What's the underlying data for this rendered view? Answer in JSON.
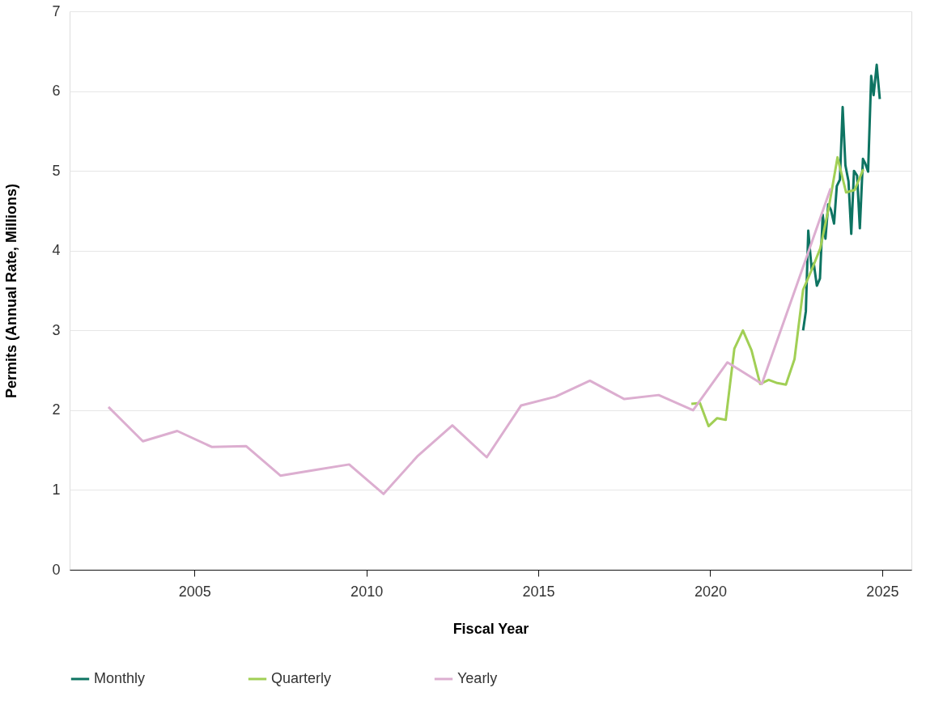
{
  "chart_data": {
    "type": "line",
    "xlabel": "Fiscal Year",
    "ylabel": "Permits (Annual Rate, Millions)",
    "xlim": [
      2001.37,
      2025.85
    ],
    "xticks": [
      2005,
      2010,
      2015,
      2020,
      2025
    ],
    "ylim": [
      0,
      7
    ],
    "yticks": [
      0,
      1,
      2,
      3,
      4,
      5,
      6,
      7
    ],
    "grid": "y",
    "legend": "bottom",
    "line_style": "solid",
    "marker": "none",
    "series": [
      {
        "name": "Monthly",
        "color": "#0e7462",
        "x": [
          2022.7,
          2022.78,
          2022.85,
          2022.95,
          2023.01,
          2023.1,
          2023.19,
          2023.27,
          2023.35,
          2023.43,
          2023.51,
          2023.6,
          2023.68,
          2023.77,
          2023.85,
          2023.93,
          2024.02,
          2024.1,
          2024.18,
          2024.27,
          2024.35,
          2024.44,
          2024.51,
          2024.59,
          2024.68,
          2024.75,
          2024.84,
          2024.93
        ],
        "values": [
          3.0,
          3.24,
          4.25,
          3.76,
          3.84,
          3.56,
          3.65,
          4.45,
          4.15,
          4.58,
          4.51,
          4.34,
          4.81,
          4.89,
          5.8,
          5.07,
          4.87,
          4.21,
          5.0,
          4.94,
          4.28,
          5.15,
          5.09,
          4.99,
          6.19,
          5.95,
          6.33,
          5.9
        ]
      },
      {
        "name": "Quarterly",
        "color": "#a1cf55",
        "x": [
          2019.45,
          2019.7,
          2019.95,
          2020.2,
          2020.45,
          2020.7,
          2020.95,
          2021.2,
          2021.45,
          2021.7,
          2021.95,
          2022.2,
          2022.45,
          2022.7,
          2022.95,
          2023.2,
          2023.45,
          2023.7,
          2023.95,
          2024.2,
          2024.45
        ],
        "values": [
          2.08,
          2.09,
          1.8,
          1.9,
          1.88,
          2.77,
          3.0,
          2.75,
          2.33,
          2.38,
          2.34,
          2.32,
          2.64,
          3.51,
          3.76,
          4.03,
          4.55,
          5.17,
          4.73,
          4.76,
          5.02
        ]
      },
      {
        "name": "Yearly",
        "color": "#dcaed0",
        "x": [
          2002.5,
          2003.5,
          2004.5,
          2005.5,
          2006.5,
          2007.5,
          2008.5,
          2009.5,
          2010.5,
          2011.5,
          2012.5,
          2013.5,
          2014.5,
          2015.5,
          2016.5,
          2017.5,
          2018.5,
          2019.5,
          2020.5,
          2021.5,
          2022.5,
          2023.5
        ],
        "values": [
          2.04,
          1.61,
          1.74,
          1.54,
          1.55,
          1.18,
          1.25,
          1.32,
          0.95,
          1.43,
          1.81,
          1.41,
          2.06,
          2.17,
          2.37,
          2.14,
          2.19,
          2.0,
          2.6,
          2.33,
          3.55,
          4.78
        ]
      }
    ]
  }
}
